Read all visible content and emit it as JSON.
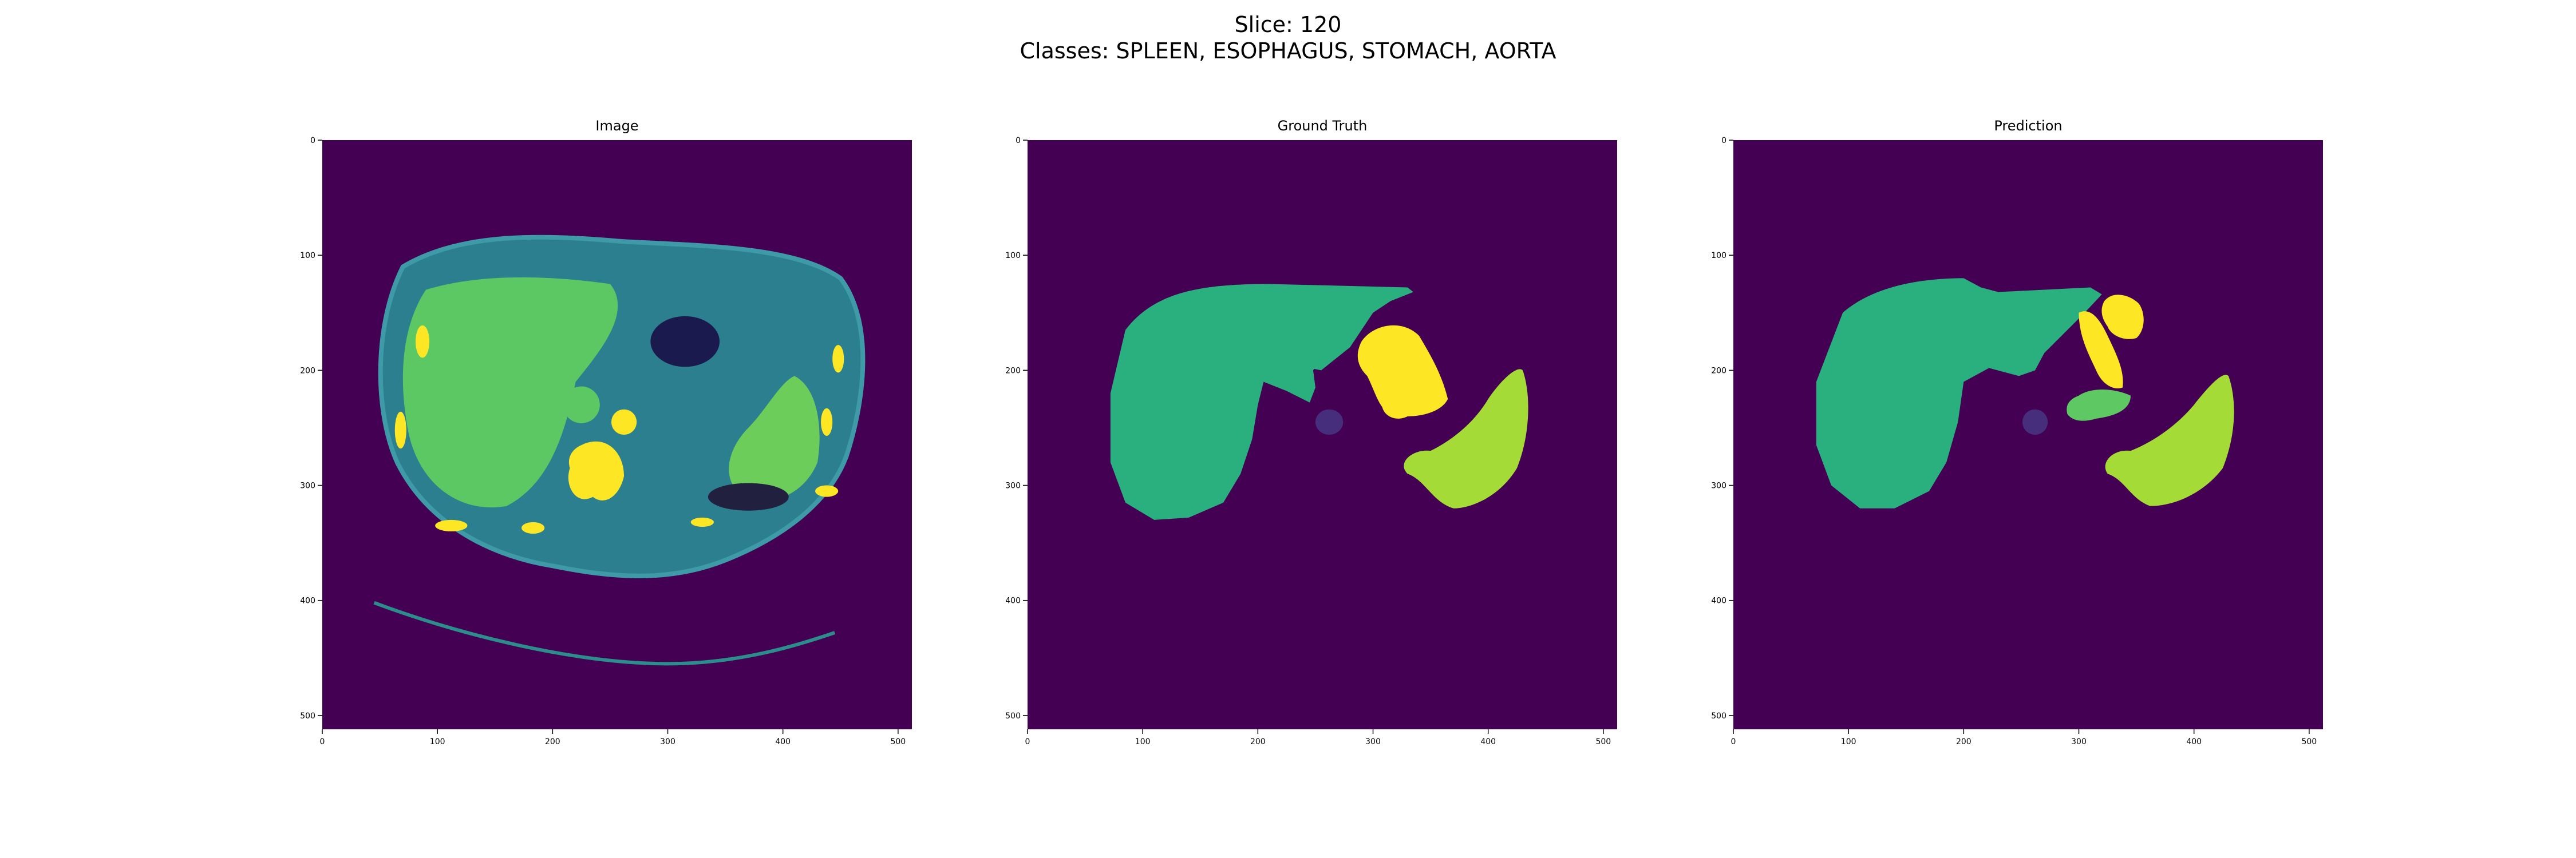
{
  "header": {
    "slice_line": "Slice: 120",
    "classes_line": "Classes: SPLEEN, ESOPHAGUS, STOMACH, AORTA"
  },
  "panels": [
    {
      "title": "Image"
    },
    {
      "title": "Ground Truth"
    },
    {
      "title": "Prediction"
    }
  ],
  "axes": {
    "x_ticks": [
      "0",
      "100",
      "200",
      "300",
      "400",
      "500"
    ],
    "y_ticks": [
      "0",
      "100",
      "200",
      "300",
      "400",
      "500"
    ]
  },
  "colors": {
    "background": "#440154",
    "liver": "#2ab07f",
    "spleen": "#a5db36",
    "stomach": "#fde725",
    "aorta": "#472e7c",
    "esophagus_pred": "#5ec962",
    "ct_body": "#2c7f8e",
    "ct_organ": "#5cc863",
    "ct_bright": "#fde725"
  }
}
